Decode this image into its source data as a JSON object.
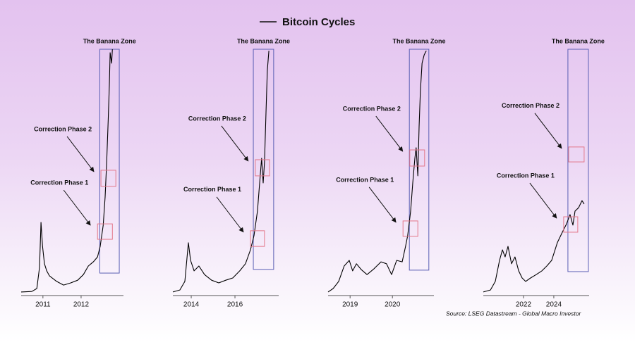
{
  "title": "Bitcoin Cycles",
  "source": "Source: LSEG Datastream - Global Macro Investor",
  "chart_data": [
    {
      "type": "line",
      "color": "#000000",
      "xlim": [
        2010.43,
        2013.11
      ],
      "ylim": [
        0,
        100
      ],
      "xticks": [
        2011,
        2012
      ],
      "x": [
        2010.43,
        2010.71,
        2010.84,
        2010.91,
        2010.95,
        2010.99,
        2011.04,
        2011.1,
        2011.17,
        2011.36,
        2011.54,
        2011.73,
        2011.91,
        2012.06,
        2012.19,
        2012.32,
        2012.43,
        2012.5,
        2012.58,
        2012.63,
        2012.67,
        2012.71,
        2012.74,
        2012.76,
        2012.8,
        2012.82
      ],
      "values": [
        0.9,
        1.1,
        2.3,
        10.9,
        29.3,
        19.5,
        12.4,
        9.5,
        7.5,
        5.2,
        3.7,
        4.6,
        5.7,
        8,
        11.5,
        13.2,
        15.2,
        19.5,
        28.2,
        39.7,
        54,
        71.3,
        85.6,
        98.6,
        94.3,
        100
      ],
      "banana_zone": {
        "label": "The Banana Zone",
        "x": [
          2012.49,
          2013.0
        ],
        "y": [
          8.6,
          100
        ]
      },
      "annotations": [
        {
          "label": "Correction Phase 2",
          "x": [
            2012.52,
            2012.91
          ],
          "y": [
            44,
            50.6
          ]
        },
        {
          "label": "Correction Phase 1",
          "x": [
            2012.43,
            2012.82
          ],
          "y": [
            22.4,
            28.7
          ]
        }
      ]
    },
    {
      "type": "line",
      "color": "#000000",
      "xlim": [
        2013.16,
        2018.0
      ],
      "ylim": [
        0,
        100
      ],
      "xticks": [
        2014,
        2016
      ],
      "x": [
        2013.16,
        2013.48,
        2013.71,
        2013.87,
        2013.97,
        2014.13,
        2014.35,
        2014.61,
        2014.93,
        2015.26,
        2015.58,
        2015.9,
        2016.22,
        2016.48,
        2016.71,
        2016.87,
        2017.03,
        2017.13,
        2017.22,
        2017.29,
        2017.35,
        2017.42,
        2017.48,
        2017.55
      ],
      "values": [
        0.9,
        1.7,
        5.2,
        21,
        13.8,
        9.5,
        11.5,
        8,
        5.7,
        4.6,
        5.7,
        6.6,
        9.5,
        12.4,
        18.1,
        23.9,
        33.9,
        45.4,
        55.5,
        45.4,
        54,
        74.1,
        91.4,
        99.4
      ],
      "banana_zone": {
        "label": "The Banana Zone",
        "x": [
          2016.84,
          2017.77
        ],
        "y": [
          10.1,
          100
        ]
      },
      "annotations": [
        {
          "label": "Correction Phase 2",
          "x": [
            2016.93,
            2017.58
          ],
          "y": [
            48.3,
            54.9
          ]
        },
        {
          "label": "Correction Phase 1",
          "x": [
            2016.71,
            2017.35
          ],
          "y": [
            19.5,
            25.9
          ]
        }
      ]
    },
    {
      "type": "line",
      "color": "#000000",
      "xlim": [
        2018.48,
        2020.98
      ],
      "ylim": [
        0,
        100
      ],
      "xticks": [
        2019,
        2020
      ],
      "x": [
        2018.48,
        2018.6,
        2018.73,
        2018.86,
        2018.98,
        2019.06,
        2019.15,
        2019.26,
        2019.4,
        2019.56,
        2019.73,
        2019.86,
        2019.98,
        2020.1,
        2020.23,
        2020.31,
        2020.36,
        2020.43,
        2020.48,
        2020.53,
        2020.56,
        2020.6,
        2020.63,
        2020.66,
        2020.7,
        2020.75,
        2020.8
      ],
      "values": [
        0.9,
        2.3,
        5.2,
        11.5,
        13.8,
        9.5,
        12.4,
        10.1,
        8,
        10.3,
        13.2,
        12.4,
        8,
        13.8,
        13.2,
        19.5,
        23.9,
        33.9,
        45.4,
        55.5,
        59.8,
        48.3,
        68.4,
        82.8,
        94.3,
        97.7,
        99.4
      ],
      "banana_zone": {
        "label": "The Banana Zone",
        "x": [
          2020.4,
          2020.86
        ],
        "y": [
          9.8,
          100
        ]
      },
      "annotations": [
        {
          "label": "Correction Phase 2",
          "x": [
            2020.41,
            2020.76
          ],
          "y": [
            52.3,
            58.9
          ]
        },
        {
          "label": "Correction Phase 1",
          "x": [
            2020.25,
            2020.6
          ],
          "y": [
            23.6,
            29.9
          ]
        }
      ]
    },
    {
      "type": "line",
      "color": "#000000",
      "xlim": [
        2019.35,
        2026.33
      ],
      "ylim": [
        0,
        100
      ],
      "xticks": [
        2022,
        2024
      ],
      "x": [
        2019.35,
        2019.82,
        2020.14,
        2020.42,
        2020.61,
        2020.79,
        2020.98,
        2021.21,
        2021.44,
        2021.68,
        2021.91,
        2022.14,
        2022.47,
        2022.84,
        2023.21,
        2023.54,
        2023.86,
        2024.23,
        2024.56,
        2024.84,
        2025.07,
        2025.26,
        2025.4,
        2025.63,
        2025.86,
        2026.0
      ],
      "values": [
        0.9,
        1.7,
        5.2,
        13.8,
        18.1,
        15.2,
        19.5,
        12.4,
        15.2,
        9.5,
        6.6,
        5.2,
        6.6,
        8,
        9.5,
        11.5,
        13.8,
        21,
        25.3,
        28.7,
        32.5,
        28.2,
        33.9,
        35.3,
        38.2,
        36.8
      ],
      "banana_zone": {
        "label": "The Banana Zone",
        "x": [
          2024.93,
          2026.28
        ],
        "y": [
          9.2,
          100
        ]
      },
      "annotations": [
        {
          "label": "Correction Phase 2",
          "x": [
            2024.98,
            2026.0
          ],
          "y": [
            54,
            60.1
          ]
        },
        {
          "label": "Correction Phase 1",
          "x": [
            2024.65,
            2025.58
          ],
          "y": [
            25.3,
            31.6
          ]
        }
      ]
    }
  ]
}
